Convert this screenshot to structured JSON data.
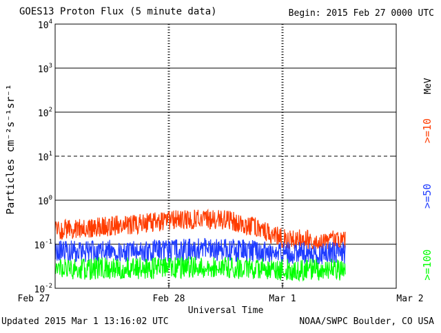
{
  "title": "GOES13 Proton Flux (5 minute data)",
  "begin_text": "Begin: 2015 Feb 27 0000 UTC",
  "updated_text": "Updated 2015 Mar  1 13:16:02 UTC",
  "credit_text": "NOAA/SWPC Boulder, CO USA",
  "colors": {
    "ge10": "#ff3c00",
    "ge50": "#1f3cff",
    "ge100": "#00ff00",
    "grid": "#000000",
    "background": "#ffffff"
  },
  "chart_data": {
    "type": "line",
    "title": "GOES13 Proton Flux (5 minute data)",
    "xlabel": "Universal Time",
    "ylabel": "Particles cm⁻²s⁻¹sr⁻¹",
    "yscale": "log",
    "ylim": [
      0.01,
      10000
    ],
    "y_ticks": [
      {
        "value": 0.01,
        "base": "10",
        "exp": "-2"
      },
      {
        "value": 0.1,
        "base": "10",
        "exp": "-1"
      },
      {
        "value": 1,
        "base": "10",
        "exp": "0"
      },
      {
        "value": 10,
        "base": "10",
        "exp": "1"
      },
      {
        "value": 100,
        "base": "10",
        "exp": "2"
      },
      {
        "value": 1000,
        "base": "10",
        "exp": "3"
      },
      {
        "value": 10000,
        "base": "10",
        "exp": "4"
      }
    ],
    "x_ticks": [
      "Feb 27",
      "Feb 28",
      "Mar 1",
      "Mar 2"
    ],
    "xlim": [
      "2015-02-27 00:00",
      "2015-03-02 00:00"
    ],
    "data_end": "2015-03-01 13:15",
    "reference_lines": [
      {
        "value": 10,
        "style": "dashed"
      }
    ],
    "grid": true,
    "legend_position": "right",
    "legend_unit": "MeV",
    "series": [
      {
        "name": ">=10",
        "color": "#ff3c00",
        "x": [
          "2015-02-27 00:00",
          "2015-02-27 06:00",
          "2015-02-27 12:00",
          "2015-02-27 18:00",
          "2015-02-28 00:00",
          "2015-02-28 06:00",
          "2015-02-28 12:00",
          "2015-02-28 18:00",
          "2015-03-01 00:00",
          "2015-03-01 06:00",
          "2015-03-01 12:00",
          "2015-03-01 13:15"
        ],
        "y": [
          0.2,
          0.22,
          0.25,
          0.28,
          0.33,
          0.36,
          0.35,
          0.24,
          0.13,
          0.12,
          0.12,
          0.13
        ]
      },
      {
        "name": ">=50",
        "color": "#1f3cff",
        "x": [
          "2015-02-27 00:00",
          "2015-02-27 06:00",
          "2015-02-27 12:00",
          "2015-02-27 18:00",
          "2015-02-28 00:00",
          "2015-02-28 06:00",
          "2015-02-28 12:00",
          "2015-02-28 18:00",
          "2015-03-01 00:00",
          "2015-03-01 06:00",
          "2015-03-01 12:00",
          "2015-03-01 13:15"
        ],
        "y": [
          0.06,
          0.065,
          0.065,
          0.065,
          0.065,
          0.068,
          0.068,
          0.062,
          0.058,
          0.057,
          0.057,
          0.058
        ]
      },
      {
        "name": ">=100",
        "color": "#00ff00",
        "x": [
          "2015-02-27 00:00",
          "2015-02-27 06:00",
          "2015-02-27 12:00",
          "2015-02-27 18:00",
          "2015-02-28 00:00",
          "2015-02-28 06:00",
          "2015-02-28 12:00",
          "2015-02-28 18:00",
          "2015-03-01 00:00",
          "2015-03-01 06:00",
          "2015-03-01 12:00",
          "2015-03-01 13:15"
        ],
        "y": [
          0.025,
          0.026,
          0.027,
          0.027,
          0.027,
          0.028,
          0.028,
          0.026,
          0.025,
          0.025,
          0.025,
          0.025
        ]
      }
    ]
  }
}
